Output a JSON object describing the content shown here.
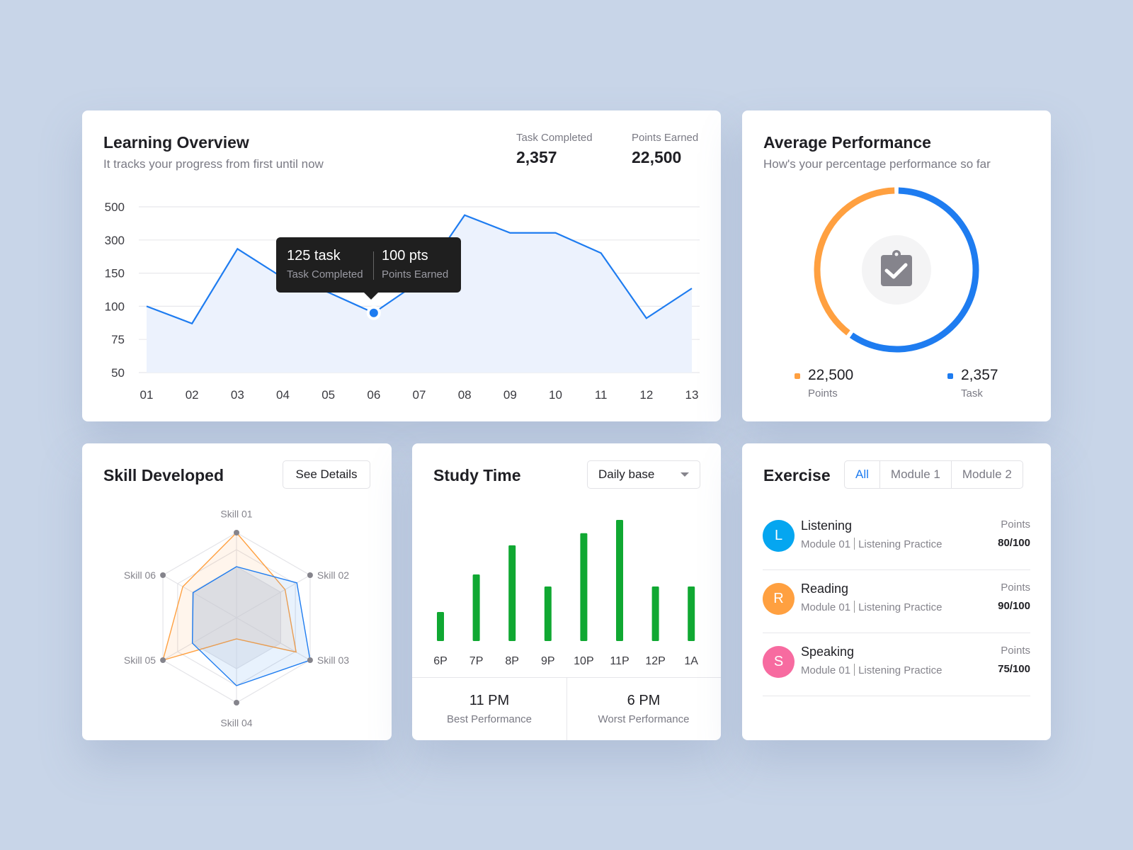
{
  "colors": {
    "blue": "#1e7cf0",
    "orange": "#ffa040",
    "green": "#10a832",
    "fill": "#ecf2fd",
    "dark": "#1f1f1f"
  },
  "overview": {
    "title": "Learning Overview",
    "subtitle": "It tracks your progress from first until now",
    "stats": [
      {
        "label": "Task Completed",
        "value": "2,357"
      },
      {
        "label": "Points Earned",
        "value": "22,500"
      }
    ],
    "tooltip": {
      "task_value": "125 task",
      "task_label": "Task Completed",
      "points_value": "100 pts",
      "points_label": "Points Earned",
      "point_index": 5
    }
  },
  "performance": {
    "title": "Average Performance",
    "subtitle": "How's your percentage performance so far",
    "icon": "clipboard-check-icon",
    "legend": [
      {
        "value": "22,500",
        "label": "Points",
        "color": "#ffa040"
      },
      {
        "value": "2,357",
        "label": "Task",
        "color": "#1e7cf0"
      }
    ]
  },
  "skills": {
    "title": "Skill Developed",
    "button": "See Details"
  },
  "study": {
    "title": "Study Time",
    "dropdown": "Daily base",
    "best": {
      "value": "11 PM",
      "label": "Best Performance"
    },
    "worst": {
      "value": "6 PM",
      "label": "Worst Performance"
    }
  },
  "exercise": {
    "title": "Exercise",
    "tabs": [
      "All",
      "Module 1",
      "Module 2"
    ],
    "active_tab": 0,
    "items": [
      {
        "initial": "L",
        "name": "Listening",
        "module": "Module 01",
        "practice": "Listening Practice",
        "points_label": "Points",
        "score": "80/100",
        "color": "#05a6f0"
      },
      {
        "initial": "R",
        "name": "Reading",
        "module": "Module 01",
        "practice": "Listening Practice",
        "points_label": "Points",
        "score": "90/100",
        "color": "#ffa040"
      },
      {
        "initial": "S",
        "name": "Speaking",
        "module": "Module 01",
        "practice": "Listening Practice",
        "points_label": "Points",
        "score": "75/100",
        "color": "#f76ba0"
      }
    ]
  },
  "chart_data": [
    {
      "type": "area",
      "x": [
        "01",
        "02",
        "03",
        "04",
        "05",
        "06",
        "07",
        "08",
        "09",
        "10",
        "11",
        "12",
        "13"
      ],
      "y_ticks": [
        50,
        75,
        100,
        150,
        300,
        500
      ],
      "values": [
        100,
        87,
        260,
        143,
        121,
        95,
        137,
        450,
        343,
        343,
        241,
        91,
        127
      ],
      "grid": true
    },
    {
      "type": "pie",
      "series": [
        {
          "name": "Points",
          "value": 40
        },
        {
          "name": "Task",
          "value": 60
        }
      ]
    },
    {
      "type": "radar",
      "categories": [
        "Skill 01",
        "Skill 02",
        "Skill 03",
        "Skill 04",
        "Skill 05",
        "Skill 06"
      ],
      "max": 100,
      "series": [
        {
          "color": "#ffa040",
          "values": [
            100,
            66,
            81,
            25,
            100,
            73
          ]
        },
        {
          "color": "#1e7cf0",
          "values": [
            60,
            82,
            100,
            80,
            60,
            59
          ]
        }
      ]
    },
    {
      "type": "bar",
      "categories": [
        "6P",
        "7P",
        "8P",
        "9P",
        "10P",
        "11P",
        "12P",
        "1A"
      ],
      "values": [
        24,
        55,
        79,
        45,
        89,
        100,
        45,
        45
      ]
    }
  ]
}
